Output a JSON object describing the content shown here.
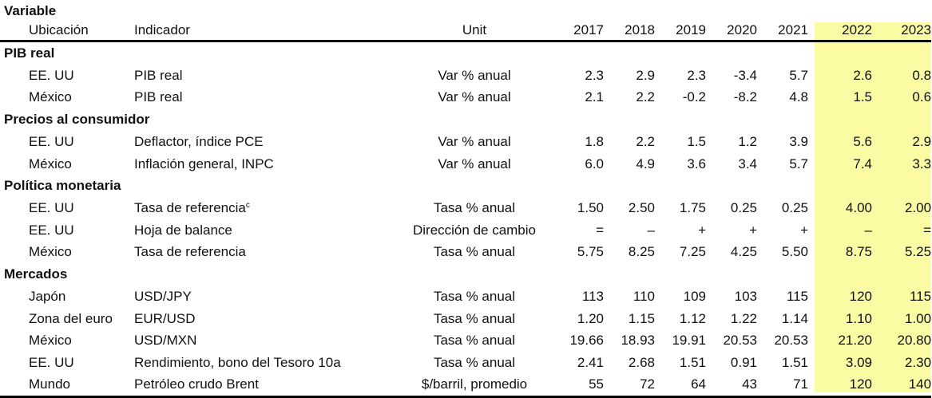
{
  "header": {
    "variable": "Variable",
    "ubicacion": "Ubicación",
    "indicador": "Indicador",
    "unit": "Unit",
    "years": [
      "2017",
      "2018",
      "2019",
      "2020",
      "2021",
      "2022",
      "2023"
    ]
  },
  "highlight_color": "#fbfba4",
  "sections": [
    {
      "title": "PIB real",
      "rows": [
        {
          "loc": "EE. UU",
          "ind": "PIB real",
          "sup": "",
          "unit": "Var % anual",
          "vals": [
            "2.3",
            "2.9",
            "2.3",
            "-3.4",
            "5.7",
            "2.6",
            "0.8"
          ]
        },
        {
          "loc": "México",
          "ind": "PIB real",
          "sup": "",
          "unit": "Var % anual",
          "vals": [
            "2.1",
            "2.2",
            "-0.2",
            "-8.2",
            "4.8",
            "1.5",
            "0.6"
          ]
        }
      ]
    },
    {
      "title": "Precios al consumidor",
      "rows": [
        {
          "loc": "EE. UU",
          "ind": "Deflactor, índice PCE",
          "sup": "",
          "unit": "Var % anual",
          "vals": [
            "1.8",
            "2.2",
            "1.5",
            "1.2",
            "3.9",
            "5.6",
            "2.9"
          ]
        },
        {
          "loc": "México",
          "ind": "Inflación general, INPC",
          "sup": "",
          "unit": "Var % anual",
          "vals": [
            "6.0",
            "4.9",
            "3.6",
            "3.4",
            "5.7",
            "7.4",
            "3.3"
          ]
        }
      ]
    },
    {
      "title": "Política monetaria",
      "rows": [
        {
          "loc": "EE. UU",
          "ind": "Tasa de referencia",
          "sup": "c",
          "unit": "Tasa % anual",
          "vals": [
            "1.50",
            "2.50",
            "1.75",
            "0.25",
            "0.25",
            "4.00",
            "2.00"
          ]
        },
        {
          "loc": "EE. UU",
          "ind": "Hoja de balance",
          "sup": "",
          "unit": "Dirección de cambio",
          "vals": [
            "=",
            "–",
            "+",
            "+",
            "+",
            "–",
            "="
          ]
        },
        {
          "loc": "México",
          "ind": "Tasa de referencia",
          "sup": "",
          "unit": "Tasa % anual",
          "vals": [
            "5.75",
            "8.25",
            "7.25",
            "4.25",
            "5.50",
            "8.75",
            "5.25"
          ]
        }
      ]
    },
    {
      "title": "Mercados",
      "rows": [
        {
          "loc": "Japón",
          "ind": "USD/JPY",
          "sup": "",
          "unit": "Tasa % anual",
          "vals": [
            "113",
            "110",
            "109",
            "103",
            "115",
            "120",
            "115"
          ]
        },
        {
          "loc": "Zona del euro",
          "ind": "EUR/USD",
          "sup": "",
          "unit": "Tasa % anual",
          "vals": [
            "1.20",
            "1.15",
            "1.12",
            "1.22",
            "1.14",
            "1.10",
            "1.00"
          ]
        },
        {
          "loc": "México",
          "ind": "USD/MXN",
          "sup": "",
          "unit": "Tasa % anual",
          "vals": [
            "19.66",
            "18.93",
            "19.91",
            "20.53",
            "20.53",
            "21.20",
            "20.80"
          ]
        },
        {
          "loc": "EE. UU",
          "ind": "Rendimiento, bono del Tesoro 10a",
          "sup": "",
          "unit": "Tasa % anual",
          "vals": [
            "2.41",
            "2.68",
            "1.51",
            "0.91",
            "1.51",
            "3.09",
            "2.30"
          ]
        },
        {
          "loc": "Mundo",
          "ind": "Petróleo crudo Brent",
          "sup": "",
          "unit": "$/barril, promedio",
          "vals": [
            "55",
            "72",
            "64",
            "43",
            "71",
            "120",
            "140"
          ]
        }
      ]
    }
  ]
}
